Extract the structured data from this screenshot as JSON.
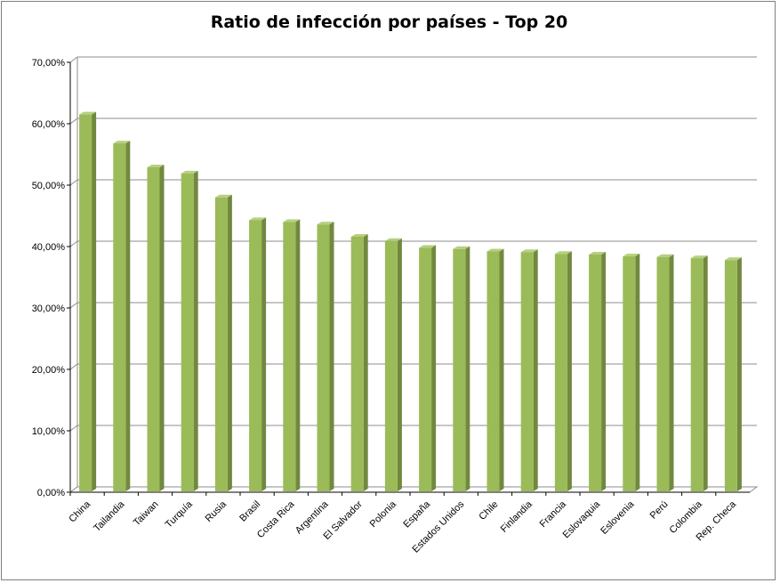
{
  "chart_data": {
    "type": "bar",
    "title": "Ratio de infección por países - Top 20",
    "xlabel": "",
    "ylabel": "",
    "ylim": [
      0,
      70
    ],
    "y_ticks": [
      "0,00%",
      "10,00%",
      "20,00%",
      "30,00%",
      "40,00%",
      "50,00%",
      "60,00%",
      "70,00%"
    ],
    "categories": [
      "China",
      "Tailandia",
      "Taiwan",
      "Turquía",
      "Rusia",
      "Brasil",
      "Costa Rica",
      "Argentina",
      "El Salvador",
      "Polonia",
      "España",
      "Estados Unidos",
      "Chile",
      "Finlandia",
      "Francia",
      "Eslovaquia",
      "Eslovenia",
      "Perú",
      "Colombia",
      "Rep. Checa"
    ],
    "values": [
      61.5,
      56.8,
      52.9,
      51.9,
      48.0,
      44.3,
      44.0,
      43.6,
      41.6,
      40.9,
      39.8,
      39.6,
      39.2,
      39.1,
      38.8,
      38.7,
      38.4,
      38.3,
      38.1,
      37.8
    ],
    "grid": true,
    "legend": "none",
    "colors": {
      "bar_front": "#9bbb59",
      "bar_side": "#71893f",
      "bar_top": "#b7d080",
      "gridline": "#8c8c8c"
    }
  }
}
